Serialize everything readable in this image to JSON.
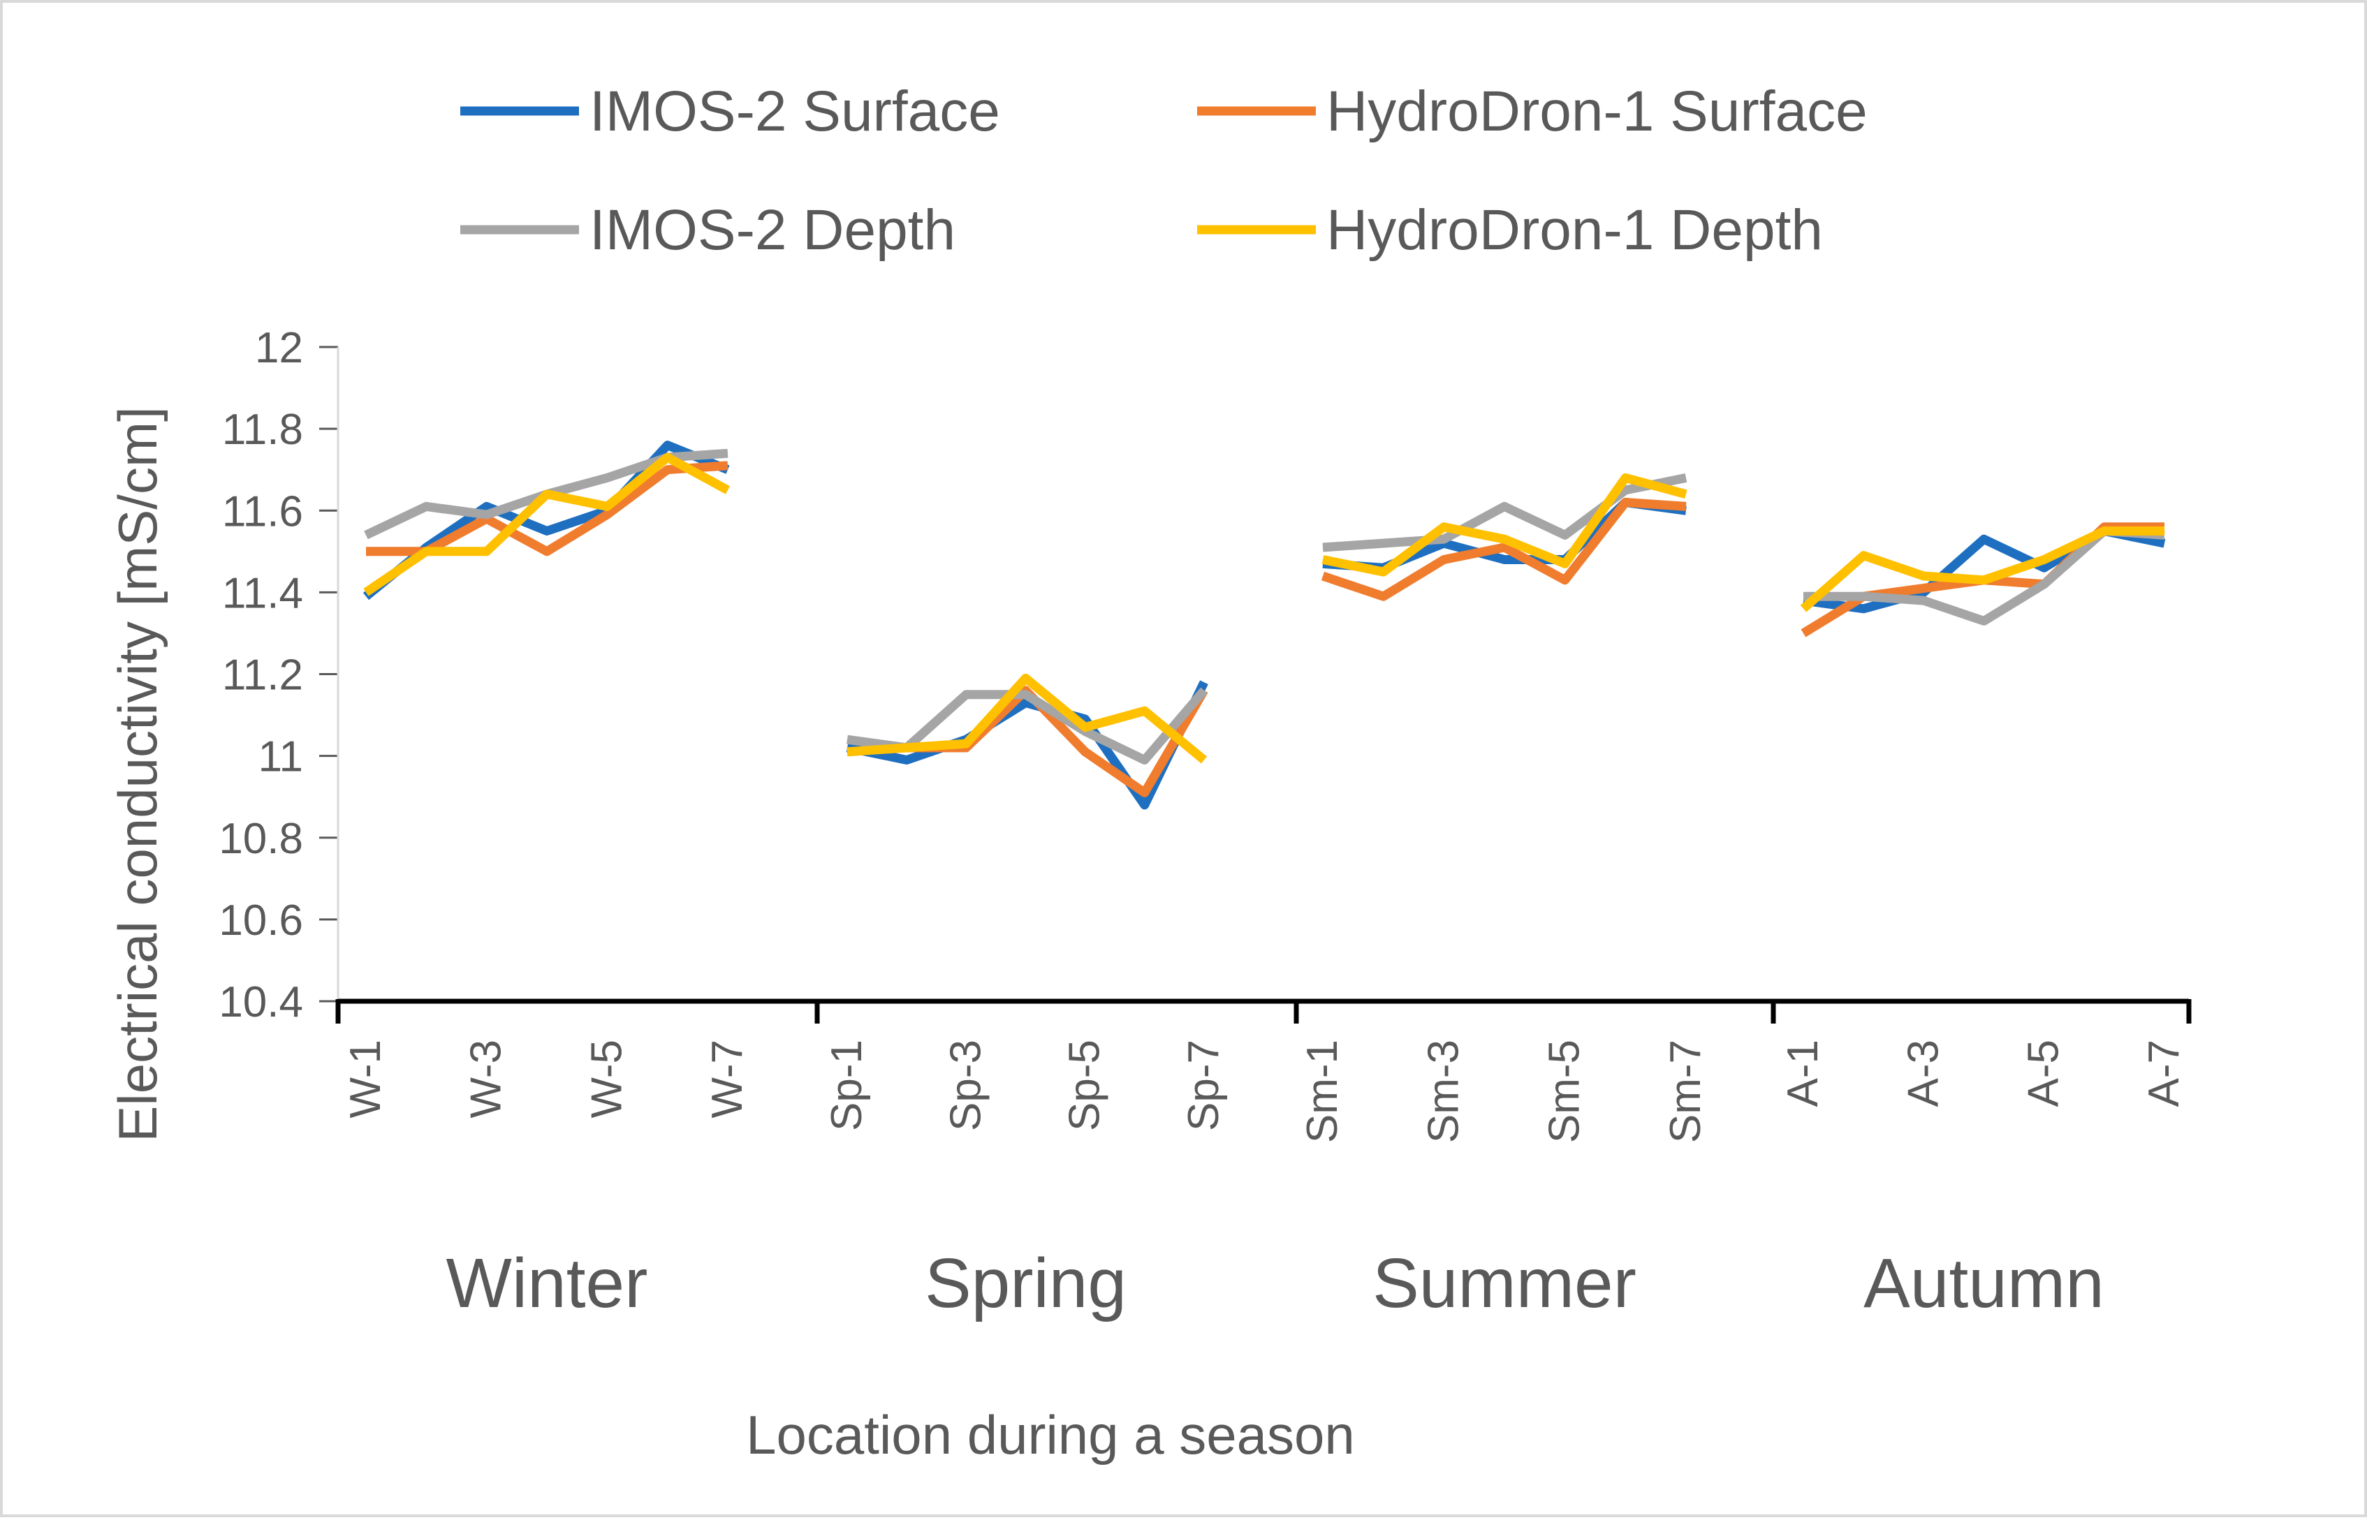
{
  "chart_data": {
    "type": "line",
    "title": "",
    "xlabel": "Location during a season",
    "ylabel": "Electrical conductivity [mS/cm]",
    "ylim": [
      10.4,
      12
    ],
    "yticks": [
      "10.4",
      "10.6",
      "10.8",
      "11",
      "11.2",
      "11.4",
      "11.6",
      "11.8",
      "12"
    ],
    "grid": false,
    "legend_position": "top",
    "groups": [
      {
        "name": "Winter",
        "labels": [
          "W-1",
          "W-3",
          "W-5",
          "W-7"
        ]
      },
      {
        "name": "Spring",
        "labels": [
          "Sp-1",
          "Sp-3",
          "Sp-5",
          "Sp-7"
        ]
      },
      {
        "name": "Summer",
        "labels": [
          "Sm-1",
          "Sm-3",
          "Sm-5",
          "Sm-7"
        ]
      },
      {
        "name": "Autumn",
        "labels": [
          "A-1",
          "A-3",
          "A-5",
          "A-7"
        ]
      }
    ],
    "series": [
      {
        "name": "IMOS-2 Surface",
        "color": "#1f6fc0",
        "values": [
          [
            11.39,
            11.51,
            11.61,
            11.55,
            11.6,
            11.76,
            11.7
          ],
          [
            11.02,
            10.99,
            11.04,
            11.13,
            11.09,
            10.88,
            11.18
          ],
          [
            11.47,
            11.46,
            11.52,
            11.48,
            11.48,
            11.62,
            11.6
          ],
          [
            11.38,
            11.36,
            11.4,
            11.53,
            11.46,
            11.55,
            11.52
          ]
        ]
      },
      {
        "name": "HydroDron-1 Surface",
        "color": "#f07c2e",
        "values": [
          [
            11.5,
            11.5,
            11.58,
            11.5,
            11.59,
            11.7,
            11.71
          ],
          [
            11.01,
            11.02,
            11.02,
            11.16,
            11.01,
            10.91,
            11.16
          ],
          [
            11.44,
            11.39,
            11.48,
            11.51,
            11.43,
            11.62,
            11.61
          ],
          [
            11.3,
            11.39,
            11.41,
            11.43,
            11.42,
            11.56,
            11.56
          ]
        ]
      },
      {
        "name": "IMOS-2 Depth",
        "color": "#a5a5a5",
        "values": [
          [
            11.54,
            11.61,
            11.59,
            11.64,
            11.68,
            11.73,
            11.74
          ],
          [
            11.04,
            11.02,
            11.15,
            11.15,
            11.06,
            10.99,
            11.16
          ],
          [
            11.51,
            11.52,
            11.53,
            11.61,
            11.54,
            11.65,
            11.68
          ],
          [
            11.39,
            11.39,
            11.38,
            11.33,
            11.42,
            11.55,
            11.54
          ]
        ]
      },
      {
        "name": "HydroDron-1 Depth",
        "color": "#ffc000",
        "values": [
          [
            11.4,
            11.5,
            11.5,
            11.64,
            11.61,
            11.73,
            11.65
          ],
          [
            11.01,
            11.02,
            11.03,
            11.19,
            11.07,
            11.11,
            10.99
          ],
          [
            11.48,
            11.45,
            11.56,
            11.53,
            11.47,
            11.68,
            11.64
          ],
          [
            11.36,
            11.49,
            11.44,
            11.43,
            11.48,
            11.55,
            11.55
          ]
        ]
      }
    ]
  }
}
